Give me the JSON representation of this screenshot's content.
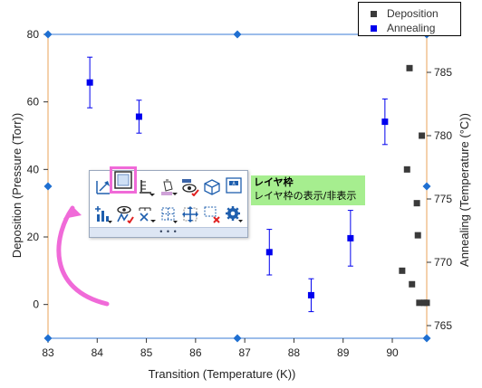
{
  "legend": {
    "items": [
      {
        "label": "Deposition",
        "color": "#3a3a3a"
      },
      {
        "label": "Annealing",
        "color": "#0000ee"
      }
    ]
  },
  "axes": {
    "bottom": {
      "title": "Transition (Temperature (K))",
      "ticks": [
        "83",
        "84",
        "85",
        "86",
        "87",
        "88",
        "89",
        "90"
      ]
    },
    "left": {
      "title": "Deposition (Pressure (Torr))",
      "ticks": [
        "0",
        "20",
        "40",
        "60",
        "80"
      ]
    },
    "right": {
      "title": "Annealing (Temperature (°C))",
      "ticks": [
        "765",
        "770",
        "775",
        "780",
        "785"
      ]
    }
  },
  "tooltip": {
    "title": "レイヤ枠",
    "description": "レイヤ枠の表示/非表示"
  },
  "toolbar": {
    "more_label": "• • •",
    "row1": [
      {
        "name": "resize-layer-icon"
      },
      {
        "name": "layer-frame-icon"
      },
      {
        "name": "axis-ticks-icon"
      },
      {
        "name": "fill-color-icon"
      },
      {
        "name": "show-hide-elements-icon"
      },
      {
        "name": "3d-box-icon"
      },
      {
        "name": "add-text-icon"
      }
    ],
    "row2": [
      {
        "name": "add-plot-icon"
      },
      {
        "name": "hide-plot-icon"
      },
      {
        "name": "axis-scale-icon"
      },
      {
        "name": "grid-icon"
      },
      {
        "name": "move-layer-icon"
      },
      {
        "name": "remove-layer-icon"
      },
      {
        "name": "layer-settings-icon"
      }
    ]
  },
  "chart_data": {
    "type": "scatter",
    "xlabel": "Transition (Temperature (K))",
    "ylabel": "Deposition (Pressure (Torr))",
    "y2label": "Annealing (Temperature (°C))",
    "xlim": [
      83,
      90.7
    ],
    "ylim": [
      -10,
      80
    ],
    "y2lim": [
      764,
      788
    ],
    "legend_position": "top-right",
    "series": [
      {
        "name": "Deposition",
        "axis": "left",
        "color": "#3a3a3a",
        "x": [
          90.2,
          90.3,
          90.35,
          90.4,
          90.5,
          90.52,
          90.55,
          90.6,
          90.65,
          90.7
        ],
        "y": [
          10,
          40,
          70,
          6,
          30,
          20.5,
          0.5,
          50,
          0.5,
          0.5
        ]
      },
      {
        "name": "Annealing",
        "axis": "right",
        "color": "#0000ee",
        "x": [
          83.85,
          84.85,
          87.5,
          88.35,
          89.15,
          89.85
        ],
        "y": [
          784.2,
          781.5,
          770.8,
          767.4,
          771.9,
          781.1
        ],
        "err": [
          2.0,
          1.3,
          1.8,
          1.3,
          2.2,
          1.8
        ]
      }
    ]
  }
}
